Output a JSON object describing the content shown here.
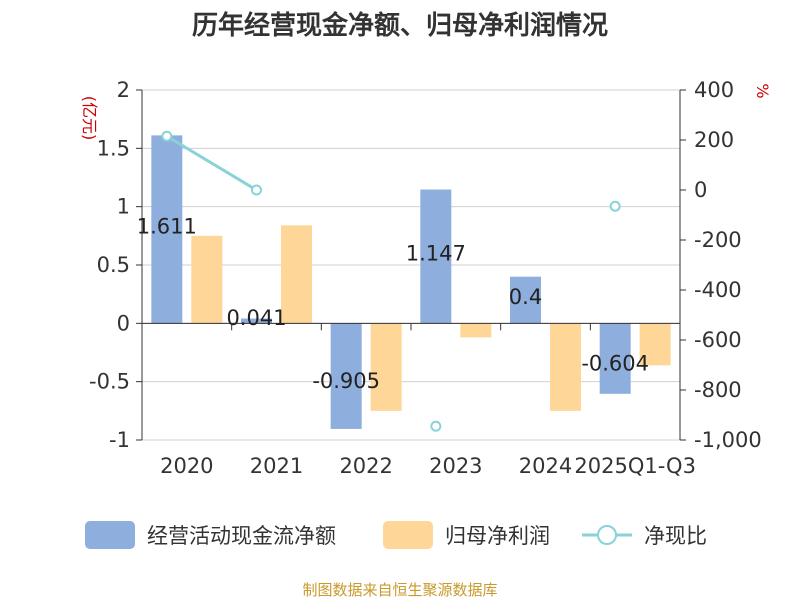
{
  "chart_data": {
    "type": "bar",
    "title": "历年经营现金净额、归母净利润情况",
    "categories": [
      "2020",
      "2021",
      "2022",
      "2023",
      "2024",
      "2025Q1-Q3"
    ],
    "left_axis": {
      "unit": "(亿元)",
      "ylim": [
        -1,
        2
      ],
      "ticks": [
        2,
        1.5,
        1,
        0.5,
        0,
        -0.5,
        -1
      ],
      "tick_labels": [
        "2",
        "1.5",
        "1",
        "0.5",
        "0",
        "-0.5",
        "-1"
      ]
    },
    "right_axis": {
      "unit": "%",
      "ylim": [
        -1000,
        400
      ],
      "ticks": [
        400,
        200,
        0,
        -200,
        -400,
        -600,
        -800,
        -1000
      ],
      "tick_labels": [
        "400",
        "200",
        "0",
        "-200",
        "-400",
        "-600",
        "-800",
        "-1,000"
      ]
    },
    "series": [
      {
        "name": "经营活动现金流净额",
        "type": "bar",
        "axis": "left",
        "color": "#8eaedd",
        "values": [
          1.611,
          0.041,
          -0.905,
          1.147,
          0.4,
          -0.604
        ],
        "labels": [
          "1.611",
          "0.041",
          "-0.905",
          "1.147",
          "0.4",
          "-0.604"
        ]
      },
      {
        "name": "归母净利润",
        "type": "bar",
        "axis": "left",
        "color": "#fdd698",
        "values": [
          0.75,
          0.84,
          -0.75,
          -0.12,
          -0.75,
          -0.36
        ]
      },
      {
        "name": "净现比",
        "type": "line",
        "axis": "right",
        "color": "#88d2d8",
        "values": [
          215,
          0,
          null,
          -945,
          null,
          -65
        ]
      }
    ]
  },
  "source": "制图数据来自恒生聚源数据库"
}
